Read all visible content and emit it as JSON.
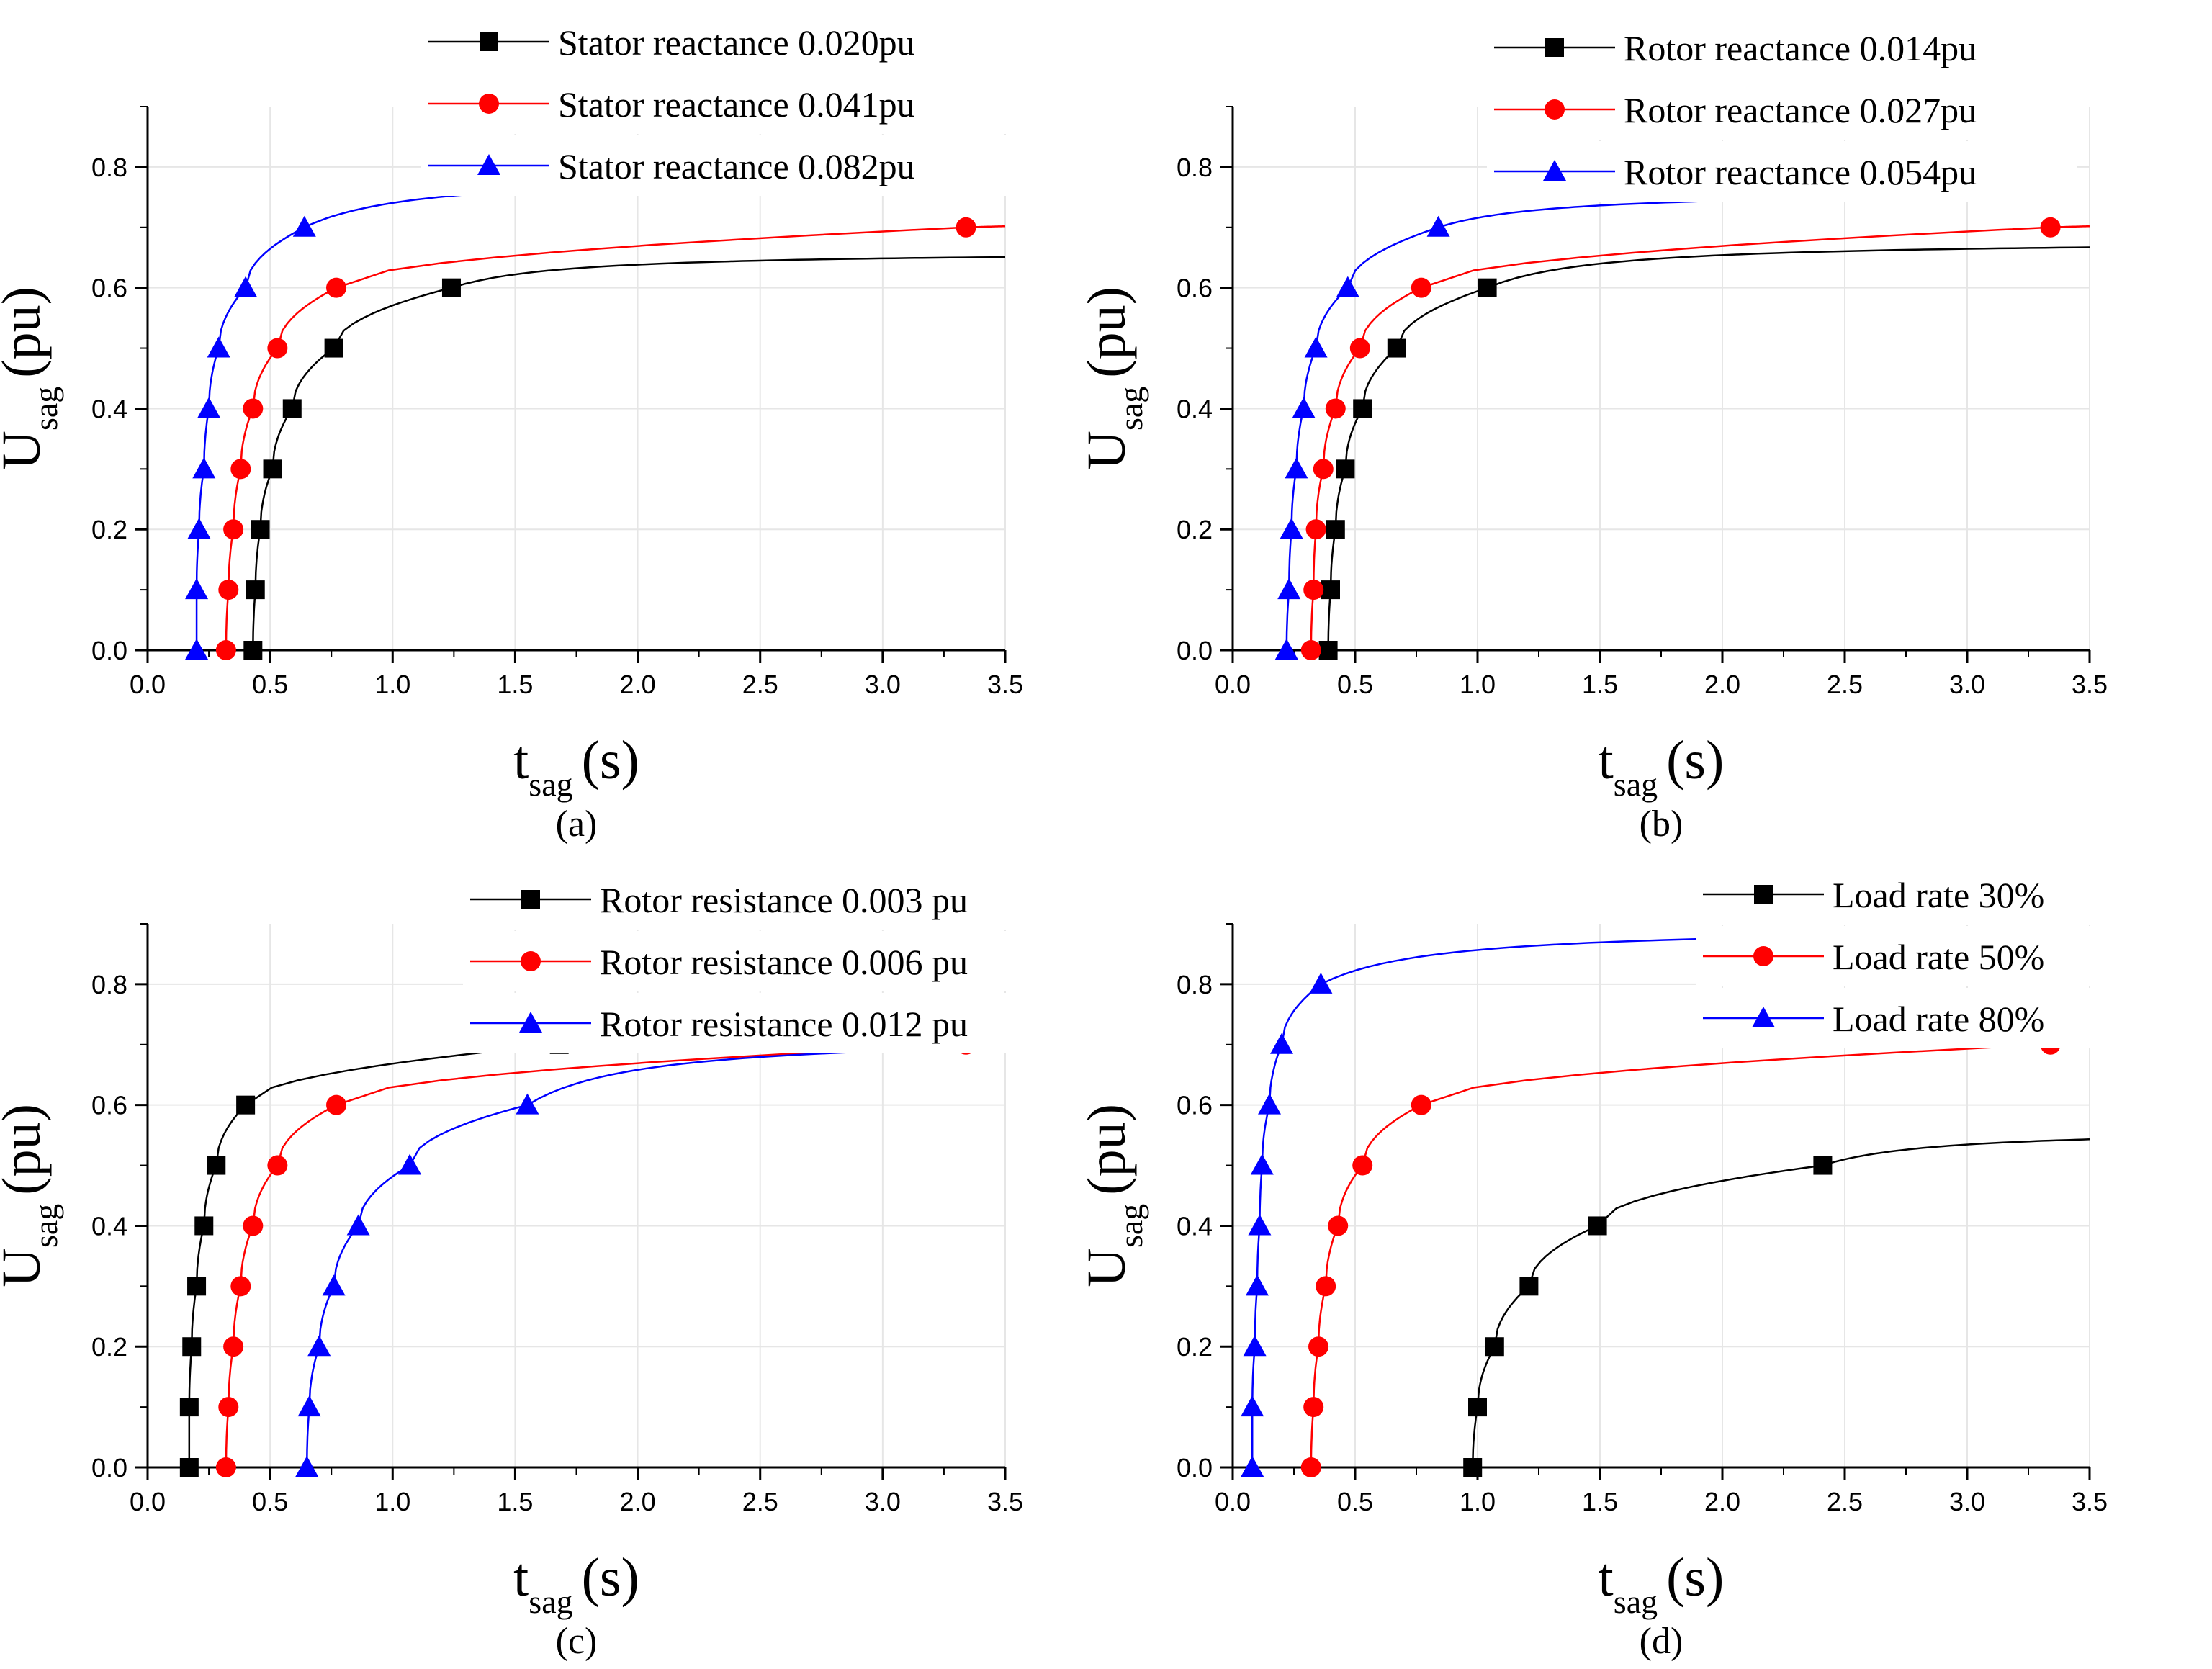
{
  "colors": {
    "black": "#000000",
    "red": "#ff0000",
    "blue": "#0000ff",
    "grid": "#e6e6e6"
  },
  "chart_data": [
    {
      "type": "line",
      "panel_label": "(a)",
      "xlabel_main": "t",
      "xlabel_sub": "sag",
      "xlabel_unit": "(s)",
      "ylabel_main": "U",
      "ylabel_sub": "sag",
      "ylabel_unit": "(pu)",
      "xlim": [
        0,
        3.5
      ],
      "ylim": [
        0,
        0.9
      ],
      "xticks": [
        0,
        0.5,
        1.0,
        1.5,
        2.0,
        2.5,
        3.0,
        3.5
      ],
      "xtick_labels": [
        "0.0",
        "0.5",
        "1.0",
        "1.5",
        "2.0",
        "2.5",
        "3.0",
        "3.5"
      ],
      "yticks": [
        0,
        0.2,
        0.4,
        0.6,
        0.8
      ],
      "ytick_labels": [
        "0.0",
        "0.2",
        "0.4",
        "0.6",
        "0.8"
      ],
      "grid": true,
      "legend_position": "top-right",
      "series": [
        {
          "name": "Stator reactance 0.020pu",
          "marker": "square",
          "color": "#000000",
          "x": [
            0.43,
            0.44,
            0.46,
            0.51,
            0.59,
            0.76,
            1.24
          ],
          "y": [
            0.0,
            0.1,
            0.2,
            0.3,
            0.4,
            0.5,
            0.6
          ],
          "asymptote": 0.66,
          "x_end": 3.5
        },
        {
          "name": "Stator reactance 0.041pu",
          "marker": "circle",
          "color": "#ff0000",
          "x": [
            0.32,
            0.33,
            0.35,
            0.38,
            0.43,
            0.53,
            0.77,
            3.34
          ],
          "y": [
            0.0,
            0.1,
            0.2,
            0.3,
            0.4,
            0.5,
            0.6,
            0.7
          ],
          "asymptote": 0.707,
          "x_end": 3.5
        },
        {
          "name": "Stator reactance 0.082pu",
          "marker": "triangle",
          "color": "#0000ff",
          "x": [
            0.2,
            0.2,
            0.21,
            0.23,
            0.25,
            0.29,
            0.4,
            0.64
          ],
          "y": [
            0.0,
            0.1,
            0.2,
            0.3,
            0.4,
            0.5,
            0.6,
            0.7
          ],
          "asymptote": 0.79,
          "x_end": 1.55
        }
      ]
    },
    {
      "type": "line",
      "panel_label": "(b)",
      "xlabel_main": "t",
      "xlabel_sub": "sag",
      "xlabel_unit": "(s)",
      "ylabel_main": "U",
      "ylabel_sub": "sag",
      "ylabel_unit": "(pu)",
      "xlim": [
        0,
        3.5
      ],
      "ylim": [
        0,
        0.9
      ],
      "xticks": [
        0,
        0.5,
        1.0,
        1.5,
        2.0,
        2.5,
        3.0,
        3.5
      ],
      "xtick_labels": [
        "0.0",
        "0.5",
        "1.0",
        "1.5",
        "2.0",
        "2.5",
        "3.0",
        "3.5"
      ],
      "yticks": [
        0,
        0.2,
        0.4,
        0.6,
        0.8
      ],
      "ytick_labels": [
        "0.0",
        "0.2",
        "0.4",
        "0.6",
        "0.8"
      ],
      "grid": true,
      "legend_position": "top-right",
      "series": [
        {
          "name": "Rotor reactance 0.014pu",
          "marker": "square",
          "color": "#000000",
          "x": [
            0.39,
            0.4,
            0.42,
            0.46,
            0.53,
            0.67,
            1.04
          ],
          "y": [
            0.0,
            0.1,
            0.2,
            0.3,
            0.4,
            0.5,
            0.6
          ],
          "asymptote": 0.678,
          "x_end": 3.5
        },
        {
          "name": "Rotor reactance 0.027pu",
          "marker": "circle",
          "color": "#ff0000",
          "x": [
            0.32,
            0.33,
            0.34,
            0.37,
            0.42,
            0.52,
            0.77,
            3.34
          ],
          "y": [
            0.0,
            0.1,
            0.2,
            0.3,
            0.4,
            0.5,
            0.6,
            0.7
          ],
          "asymptote": 0.707,
          "x_end": 3.5
        },
        {
          "name": "Rotor reactance 0.054pu",
          "marker": "triangle",
          "color": "#0000ff",
          "x": [
            0.22,
            0.23,
            0.24,
            0.26,
            0.29,
            0.34,
            0.47,
            0.84
          ],
          "y": [
            0.0,
            0.1,
            0.2,
            0.3,
            0.4,
            0.5,
            0.6,
            0.7
          ],
          "asymptote": 0.76,
          "x_end": 1.9
        }
      ]
    },
    {
      "type": "line",
      "panel_label": "(c)",
      "xlabel_main": "t",
      "xlabel_sub": "sag",
      "xlabel_unit": "(s)",
      "ylabel_main": "U",
      "ylabel_sub": "sag",
      "ylabel_unit": "(pu)",
      "xlim": [
        0,
        3.5
      ],
      "ylim": [
        0,
        0.9
      ],
      "xticks": [
        0,
        0.5,
        1.0,
        1.5,
        2.0,
        2.5,
        3.0,
        3.5
      ],
      "xtick_labels": [
        "0.0",
        "0.5",
        "1.0",
        "1.5",
        "2.0",
        "2.5",
        "3.0",
        "3.5"
      ],
      "yticks": [
        0,
        0.2,
        0.4,
        0.6,
        0.8
      ],
      "ytick_labels": [
        "0.0",
        "0.2",
        "0.4",
        "0.6",
        "0.8"
      ],
      "grid": true,
      "legend_position": "top-right",
      "series": [
        {
          "name": "Rotor resistance 0.003 pu",
          "marker": "square",
          "color": "#000000",
          "x": [
            0.17,
            0.17,
            0.18,
            0.2,
            0.23,
            0.28,
            0.4,
            1.68
          ],
          "y": [
            0.0,
            0.1,
            0.2,
            0.3,
            0.4,
            0.5,
            0.6,
            0.7
          ],
          "asymptote": 0.702,
          "x_end": 1.68
        },
        {
          "name": "Rotor resistance 0.006 pu",
          "marker": "circle",
          "color": "#ff0000",
          "x": [
            0.32,
            0.33,
            0.35,
            0.38,
            0.43,
            0.53,
            0.77,
            3.34
          ],
          "y": [
            0.0,
            0.1,
            0.2,
            0.3,
            0.4,
            0.5,
            0.6,
            0.7
          ],
          "asymptote": 0.707,
          "x_end": 3.5
        },
        {
          "name": "Rotor resistance 0.012 pu",
          "marker": "triangle",
          "color": "#0000ff",
          "x": [
            0.65,
            0.66,
            0.7,
            0.76,
            0.86,
            1.07,
            1.55
          ],
          "y": [
            0.0,
            0.1,
            0.2,
            0.3,
            0.4,
            0.5,
            0.6
          ],
          "asymptote": 0.715,
          "x_end": 3.5
        }
      ]
    },
    {
      "type": "line",
      "panel_label": "(d)",
      "xlabel_main": "t",
      "xlabel_sub": "sag",
      "xlabel_unit": "(s)",
      "ylabel_main": "U",
      "ylabel_sub": "sag",
      "ylabel_unit": "(pu)",
      "xlim": [
        0,
        3.5
      ],
      "ylim": [
        0,
        0.9
      ],
      "xticks": [
        0,
        0.5,
        1.0,
        1.5,
        2.0,
        2.5,
        3.0,
        3.5
      ],
      "xtick_labels": [
        "0.0",
        "0.5",
        "1.0",
        "1.5",
        "2.0",
        "2.5",
        "3.0",
        "3.5"
      ],
      "yticks": [
        0,
        0.2,
        0.4,
        0.6,
        0.8
      ],
      "ytick_labels": [
        "0.0",
        "0.2",
        "0.4",
        "0.6",
        "0.8"
      ],
      "grid": true,
      "legend_position": "top-right",
      "series": [
        {
          "name": "Load rate 30%",
          "marker": "square",
          "color": "#000000",
          "x": [
            0.98,
            1.0,
            1.07,
            1.21,
            1.49,
            2.41
          ],
          "y": [
            0.0,
            0.1,
            0.2,
            0.3,
            0.4,
            0.5
          ],
          "asymptote": 0.56,
          "x_end": 3.5
        },
        {
          "name": "Load rate 50%",
          "marker": "circle",
          "color": "#ff0000",
          "x": [
            0.32,
            0.33,
            0.35,
            0.38,
            0.43,
            0.53,
            0.77,
            3.34
          ],
          "y": [
            0.0,
            0.1,
            0.2,
            0.3,
            0.4,
            0.5,
            0.6,
            0.7
          ],
          "asymptote": 0.707,
          "x_end": 3.5
        },
        {
          "name": "Load rate 80%",
          "marker": "triangle",
          "color": "#0000ff",
          "x": [
            0.08,
            0.08,
            0.09,
            0.1,
            0.11,
            0.12,
            0.15,
            0.2,
            0.36
          ],
          "y": [
            0.0,
            0.1,
            0.2,
            0.3,
            0.4,
            0.5,
            0.6,
            0.7,
            0.8
          ],
          "asymptote": 0.895,
          "x_end": 2.35
        }
      ]
    }
  ]
}
